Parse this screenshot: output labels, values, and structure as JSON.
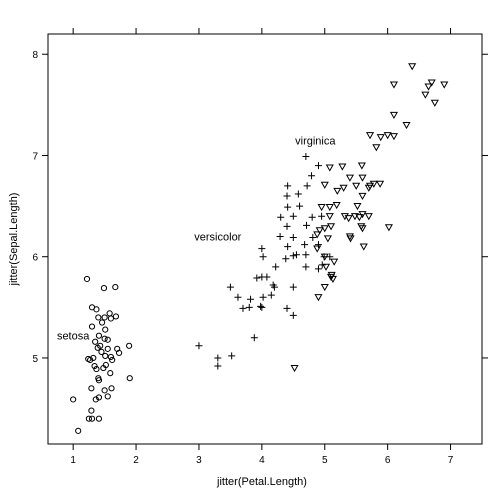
{
  "chart_data": {
    "type": "scatter",
    "title": "",
    "xlabel": "jitter(Petal.Length)",
    "ylabel": "jitter(Sepal.Length)",
    "xlim": [
      0.6,
      7.5
    ],
    "ylim": [
      4.15,
      8.2
    ],
    "xticks": [
      1,
      2,
      3,
      4,
      5,
      6,
      7
    ],
    "yticks": [
      5,
      6,
      7,
      8
    ],
    "grid": false,
    "legend": "none",
    "series": [
      {
        "name": "setosa",
        "marker": "circle",
        "label_at": [
          1.0,
          5.22
        ],
        "points": [
          [
            1.22,
            5.78
          ],
          [
            1.3,
            5.5
          ],
          [
            1.37,
            5.48
          ],
          [
            1.49,
            5.69
          ],
          [
            1.67,
            5.7
          ],
          [
            1.5,
            5.4
          ],
          [
            1.4,
            5.4
          ],
          [
            1.68,
            5.41
          ],
          [
            1.6,
            5.39
          ],
          [
            1.3,
            5.31
          ],
          [
            1.51,
            5.28
          ],
          [
            1.41,
            5.22
          ],
          [
            1.5,
            5.19
          ],
          [
            1.55,
            5.18
          ],
          [
            1.35,
            5.16
          ],
          [
            1.43,
            5.12
          ],
          [
            1.39,
            5.1
          ],
          [
            1.55,
            5.09
          ],
          [
            1.7,
            5.09
          ],
          [
            1.89,
            5.12
          ],
          [
            1.45,
            5.06
          ],
          [
            1.51,
            5.02
          ],
          [
            1.6,
            5.01
          ],
          [
            1.32,
            5.0
          ],
          [
            1.24,
            4.99
          ],
          [
            1.27,
            4.98
          ],
          [
            1.62,
            4.98
          ],
          [
            1.48,
            4.9
          ],
          [
            1.37,
            4.89
          ],
          [
            1.4,
            4.8
          ],
          [
            1.59,
            4.85
          ],
          [
            1.9,
            4.8
          ],
          [
            1.41,
            4.78
          ],
          [
            1.29,
            4.7
          ],
          [
            1.61,
            4.7
          ],
          [
            1.5,
            4.68
          ],
          [
            1.41,
            4.61
          ],
          [
            1.36,
            4.59
          ],
          [
            1.0,
            4.59
          ],
          [
            1.29,
            4.48
          ],
          [
            1.3,
            4.4
          ],
          [
            1.25,
            4.4
          ],
          [
            1.41,
            4.4
          ],
          [
            1.08,
            4.28
          ],
          [
            1.52,
            4.93
          ],
          [
            1.46,
            5.35
          ],
          [
            1.58,
            5.44
          ],
          [
            1.73,
            5.05
          ],
          [
            1.34,
            4.92
          ],
          [
            1.55,
            4.62
          ]
        ]
      },
      {
        "name": "versicolor",
        "marker": "plus",
        "label_at": [
          3.3,
          6.2
        ],
        "points": [
          [
            4.7,
            6.99
          ],
          [
            4.41,
            6.7
          ],
          [
            4.9,
            6.9
          ],
          [
            4.79,
            6.8
          ],
          [
            4.4,
            6.6
          ],
          [
            4.58,
            6.62
          ],
          [
            4.72,
            6.7
          ],
          [
            4.41,
            6.49
          ],
          [
            4.6,
            6.5
          ],
          [
            4.5,
            6.4
          ],
          [
            4.3,
            6.39
          ],
          [
            4.71,
            6.31
          ],
          [
            4.4,
            6.3
          ],
          [
            4.8,
            6.39
          ],
          [
            4.95,
            6.4
          ],
          [
            4.29,
            6.2
          ],
          [
            4.5,
            6.19
          ],
          [
            4.81,
            6.19
          ],
          [
            4.9,
            6.12
          ],
          [
            4.68,
            6.12
          ],
          [
            4.41,
            6.1
          ],
          [
            4.55,
            6.02
          ],
          [
            4.7,
            6.02
          ],
          [
            4.99,
            6.0
          ],
          [
            5.08,
            6.0
          ],
          [
            4.0,
            6.08
          ],
          [
            4.02,
            6.0
          ],
          [
            4.5,
            6.01
          ],
          [
            4.38,
            5.98
          ],
          [
            4.96,
            5.92
          ],
          [
            4.7,
            5.9
          ],
          [
            4.9,
            5.88
          ],
          [
            4.22,
            5.9
          ],
          [
            4.18,
            5.72
          ],
          [
            4.2,
            5.7
          ],
          [
            4.08,
            5.8
          ],
          [
            4.0,
            5.8
          ],
          [
            3.92,
            5.79
          ],
          [
            3.5,
            5.7
          ],
          [
            4.5,
            5.7
          ],
          [
            4.02,
            5.6
          ],
          [
            3.62,
            5.6
          ],
          [
            3.82,
            5.58
          ],
          [
            4.15,
            5.62
          ],
          [
            3.8,
            5.5
          ],
          [
            3.7,
            5.49
          ],
          [
            3.98,
            5.51
          ],
          [
            4.0,
            5.5
          ],
          [
            4.4,
            5.49
          ],
          [
            4.5,
            5.42
          ],
          [
            3.88,
            5.2
          ],
          [
            3.0,
            5.12
          ],
          [
            3.3,
            5.0
          ],
          [
            3.52,
            5.02
          ],
          [
            3.3,
            4.92
          ]
        ]
      },
      {
        "name": "virginica",
        "marker": "triangle-down",
        "label_at": [
          4.85,
          7.15
        ],
        "points": [
          [
            6.39,
            7.88
          ],
          [
            6.1,
            7.7
          ],
          [
            6.7,
            7.72
          ],
          [
            6.9,
            7.7
          ],
          [
            6.65,
            7.68
          ],
          [
            6.6,
            7.6
          ],
          [
            6.75,
            7.52
          ],
          [
            6.1,
            7.4
          ],
          [
            6.3,
            7.3
          ],
          [
            5.72,
            7.2
          ],
          [
            5.89,
            7.18
          ],
          [
            6.0,
            7.2
          ],
          [
            6.1,
            7.19
          ],
          [
            5.82,
            7.08
          ],
          [
            5.28,
            6.89
          ],
          [
            5.59,
            6.9
          ],
          [
            5.08,
            6.88
          ],
          [
            5.4,
            6.78
          ],
          [
            5.6,
            6.78
          ],
          [
            5.5,
            6.7
          ],
          [
            5.72,
            6.7
          ],
          [
            5.78,
            6.72
          ],
          [
            5.7,
            6.68
          ],
          [
            5.88,
            6.72
          ],
          [
            5.0,
            6.71
          ],
          [
            5.3,
            6.68
          ],
          [
            5.2,
            6.65
          ],
          [
            5.6,
            6.6
          ],
          [
            5.19,
            6.51
          ],
          [
            5.52,
            6.5
          ],
          [
            5.08,
            6.49
          ],
          [
            4.95,
            6.49
          ],
          [
            5.6,
            6.42
          ],
          [
            5.32,
            6.4
          ],
          [
            5.48,
            6.4
          ],
          [
            5.7,
            6.4
          ],
          [
            5.08,
            6.4
          ],
          [
            5.55,
            6.39
          ],
          [
            5.38,
            6.38
          ],
          [
            5.58,
            6.3
          ],
          [
            5.1,
            6.3
          ],
          [
            5.6,
            6.28
          ],
          [
            5.0,
            6.28
          ],
          [
            4.92,
            6.26
          ],
          [
            6.02,
            6.29
          ],
          [
            5.4,
            6.2
          ],
          [
            4.88,
            6.22
          ],
          [
            5.05,
            6.18
          ],
          [
            4.88,
            6.08
          ],
          [
            5.62,
            6.1
          ],
          [
            5.0,
            6.0
          ],
          [
            5.15,
            5.95
          ],
          [
            5.02,
            5.9
          ],
          [
            5.1,
            5.8
          ],
          [
            5.13,
            5.78
          ],
          [
            5.11,
            5.82
          ],
          [
            5.0,
            5.7
          ],
          [
            4.9,
            5.6
          ],
          [
            4.52,
            4.9
          ],
          [
            5.41,
            6.18
          ]
        ]
      }
    ]
  }
}
